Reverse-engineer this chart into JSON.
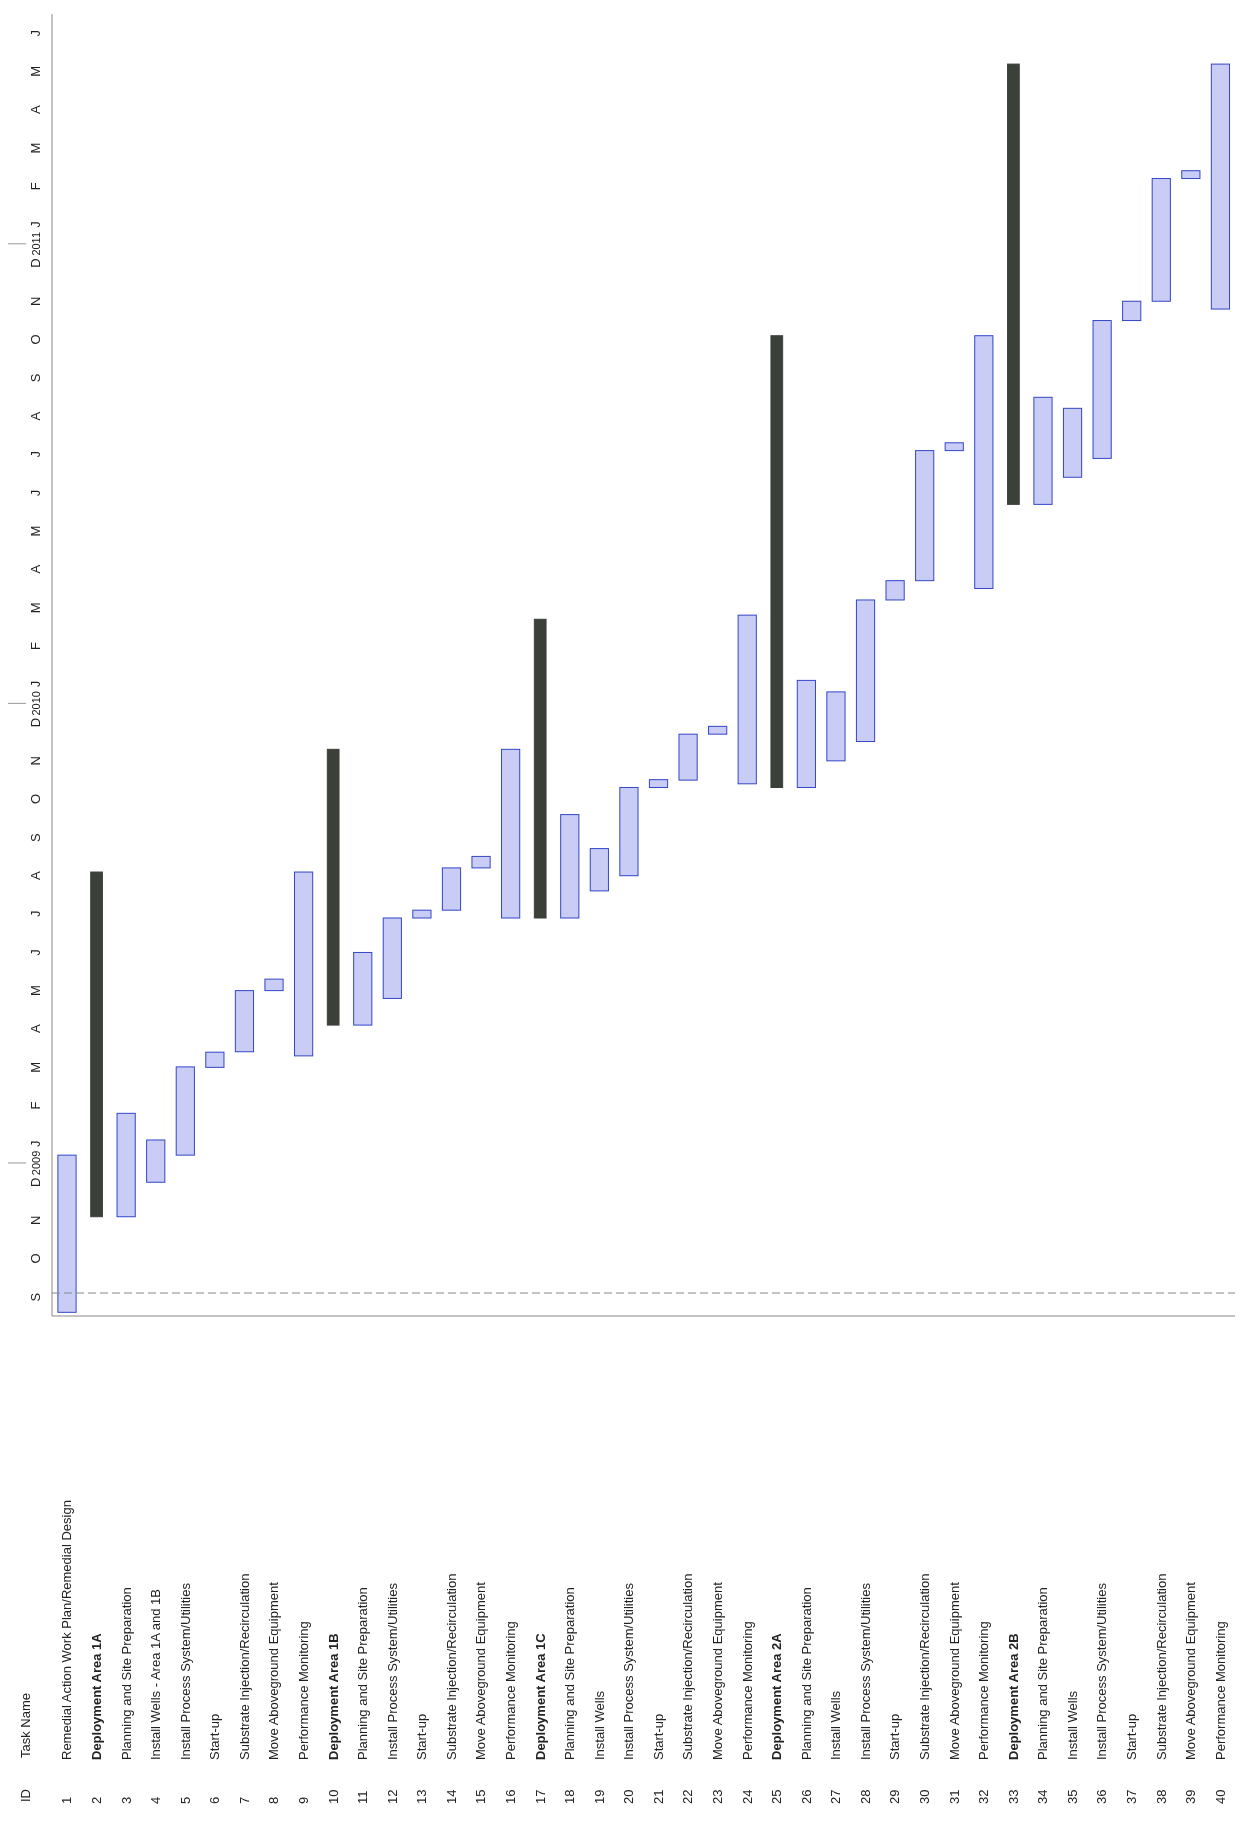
{
  "chart_data": {
    "type": "bar",
    "annotations": [
      "ID",
      "Task Name"
    ],
    "categories": [
      "Remedial Action Work Plan/Remedial Design",
      "Deployment Area 1A",
      "Planning and Site Preparation",
      "Install Wells - Area 1A and 1B",
      "Install Process System/Utilities",
      "Start-up",
      "Substrate Injection/Recirculation",
      "Move Aboveground Equipment",
      "Performance Monitoring",
      "Deployment Area 1B",
      "Planning and Site Preparation",
      "Install Process System/Utilities",
      "Start-up",
      "Substrate Injection/Recirculation",
      "Move Aboveground Equipment",
      "Performance Monitoring",
      "Deployment Area 1C",
      "Planning and Site Preparation",
      "Install Wells",
      "Install Process System/Utilities",
      "Start-up",
      "Substrate Injection/Recirculation",
      "Move Aboveground Equipment",
      "Performance Monitoring",
      "Deployment Area 2A",
      "Planning and Site Preparation",
      "Install Wells",
      "Install Process System/Utilities",
      "Start-up",
      "Substrate Injection/Recirculation",
      "Move Aboveground Equipment",
      "Performance Monitoring",
      "Deployment Area 2B",
      "Planning and Site Preparation",
      "Install Wells",
      "Install Process System/Utilities",
      "Start-up",
      "Substrate Injection/Recirculation",
      "Move Aboveground Equipment",
      "Performance Monitoring"
    ],
    "y2_categories": [
      "1",
      "2",
      "3",
      "4",
      "5",
      "6",
      "7",
      "8",
      "9",
      "10",
      "11",
      "12",
      "13",
      "14",
      "15",
      "16",
      "17",
      "18",
      "19",
      "20",
      "21",
      "22",
      "23",
      "24",
      "25",
      "26",
      "27",
      "28",
      "29",
      "30",
      "31",
      "32",
      "33",
      "34",
      "35",
      "36",
      "37",
      "38",
      "39",
      "40"
    ],
    "base": [
      2008.675,
      2008.883,
      2008.883,
      2008.958,
      2009.017,
      2009.208,
      2009.242,
      2009.375,
      2009.233,
      2009.3,
      2009.3,
      2009.358,
      2009.533,
      2009.55,
      2009.642,
      2009.533,
      2009.533,
      2009.533,
      2009.592,
      2009.625,
      2009.817,
      2009.833,
      2009.933,
      2009.825,
      2009.817,
      2009.817,
      2009.875,
      2009.917,
      2010.225,
      2010.267,
      2010.55,
      2010.25,
      2010.433,
      2010.433,
      2010.492,
      2010.533,
      2010.833,
      2010.875,
      2011.142,
      2010.858
    ],
    "values": [
      0.342,
      0.75,
      0.225,
      0.092,
      0.192,
      0.033,
      0.133,
      0.025,
      0.4,
      0.6,
      0.158,
      0.175,
      0.017,
      0.092,
      0.025,
      0.367,
      0.65,
      0.225,
      0.092,
      0.192,
      0.017,
      0.1,
      0.017,
      0.367,
      0.983,
      0.233,
      0.15,
      0.308,
      0.042,
      0.283,
      0.017,
      0.55,
      0.958,
      0.233,
      0.15,
      0.3,
      0.042,
      0.267,
      0.017,
      0.533
    ],
    "colors": [
      "#c9cdf5",
      "#3b4139",
      "#c9cdf5",
      "#c9cdf5",
      "#c9cdf5",
      "#c9cdf5",
      "#c9cdf5",
      "#c9cdf5",
      "#c9cdf5",
      "#3b4139",
      "#c9cdf5",
      "#c9cdf5",
      "#c9cdf5",
      "#c9cdf5",
      "#c9cdf5",
      "#c9cdf5",
      "#3b4139",
      "#c9cdf5",
      "#c9cdf5",
      "#c9cdf5",
      "#c9cdf5",
      "#c9cdf5",
      "#c9cdf5",
      "#c9cdf5",
      "#3b4139",
      "#c9cdf5",
      "#c9cdf5",
      "#c9cdf5",
      "#c9cdf5",
      "#c9cdf5",
      "#c9cdf5",
      "#c9cdf5",
      "#3b4139",
      "#c9cdf5",
      "#c9cdf5",
      "#c9cdf5",
      "#c9cdf5",
      "#c9cdf5",
      "#c9cdf5",
      "#c9cdf5"
    ],
    "ylim": [
      2008.667,
      2011.5
    ],
    "yticks": [
      2009,
      2010,
      2011,
      {
        "value": 2008.708,
        "label": "S"
      },
      {
        "value": 2008.792,
        "label": "O"
      },
      {
        "value": 2008.875,
        "label": "N"
      },
      {
        "value": 2008.958,
        "label": "D"
      },
      {
        "value": 2009.042,
        "label": "J"
      },
      {
        "value": 2009.125,
        "label": "F"
      },
      {
        "value": 2009.208,
        "label": "M"
      },
      {
        "value": 2009.292,
        "label": "A"
      },
      {
        "value": 2009.375,
        "label": "M"
      },
      {
        "value": 2009.458,
        "label": "J"
      },
      {
        "value": 2009.542,
        "label": "J"
      },
      {
        "value": 2009.625,
        "label": "A"
      },
      {
        "value": 2009.708,
        "label": "S"
      },
      {
        "value": 2009.792,
        "label": "O"
      },
      {
        "value": 2009.875,
        "label": "N"
      },
      {
        "value": 2009.958,
        "label": "D"
      },
      {
        "value": 2010.042,
        "label": "J"
      },
      {
        "value": 2010.125,
        "label": "F"
      },
      {
        "value": 2010.208,
        "label": "M"
      },
      {
        "value": 2010.292,
        "label": "A"
      },
      {
        "value": 2010.375,
        "label": "M"
      },
      {
        "value": 2010.458,
        "label": "J"
      },
      {
        "value": 2010.542,
        "label": "J"
      },
      {
        "value": 2010.625,
        "label": "A"
      },
      {
        "value": 2010.708,
        "label": "S"
      },
      {
        "value": 2010.792,
        "label": "O"
      },
      {
        "value": 2010.875,
        "label": "N"
      },
      {
        "value": 2010.958,
        "label": "D"
      },
      {
        "value": 2011.042,
        "label": "J"
      },
      {
        "value": 2011.125,
        "label": "F"
      },
      {
        "value": 2011.208,
        "label": "M"
      },
      {
        "value": 2011.292,
        "label": "A"
      },
      {
        "value": 2011.375,
        "label": "M"
      },
      {
        "value": 2011.458,
        "label": "J"
      }
    ],
    "ref_lines": [
      {
        "axis": "y",
        "value": 2008.717,
        "color": "#888888",
        "line_style": "dashed"
      }
    ]
  }
}
